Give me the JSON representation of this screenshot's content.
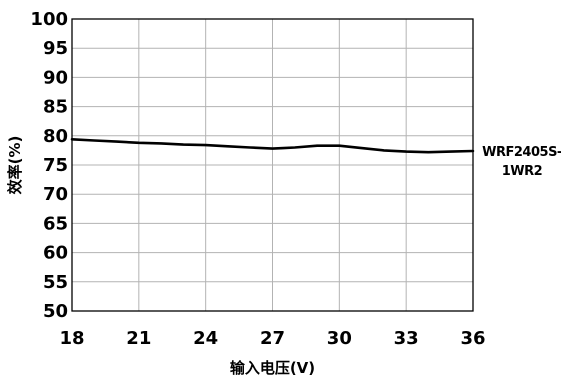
{
  "chart_data": {
    "type": "line",
    "title": "",
    "xlabel": "输入电压(V)",
    "ylabel": "效率(%)",
    "xlim": [
      18,
      36
    ],
    "ylim": [
      50,
      100
    ],
    "xticks": [
      18,
      21,
      24,
      27,
      30,
      33,
      36
    ],
    "yticks": [
      50,
      55,
      60,
      65,
      70,
      75,
      80,
      85,
      90,
      95,
      100
    ],
    "grid": true,
    "legend_position": "right",
    "series": [
      {
        "name": "WRF2405S-1WR2",
        "label_lines": [
          "WRF2405S-",
          "1WR2"
        ],
        "color": "#000000",
        "x": [
          18,
          19,
          20,
          21,
          22,
          23,
          24,
          25,
          26,
          27,
          27.5,
          28,
          29,
          30,
          31,
          32,
          33,
          34,
          35,
          36
        ],
        "y": [
          79.4,
          79.2,
          79.0,
          78.8,
          78.7,
          78.5,
          78.4,
          78.2,
          78.0,
          77.8,
          77.9,
          78.0,
          78.3,
          78.3,
          77.9,
          77.5,
          77.3,
          77.2,
          77.3,
          77.4
        ]
      }
    ]
  }
}
